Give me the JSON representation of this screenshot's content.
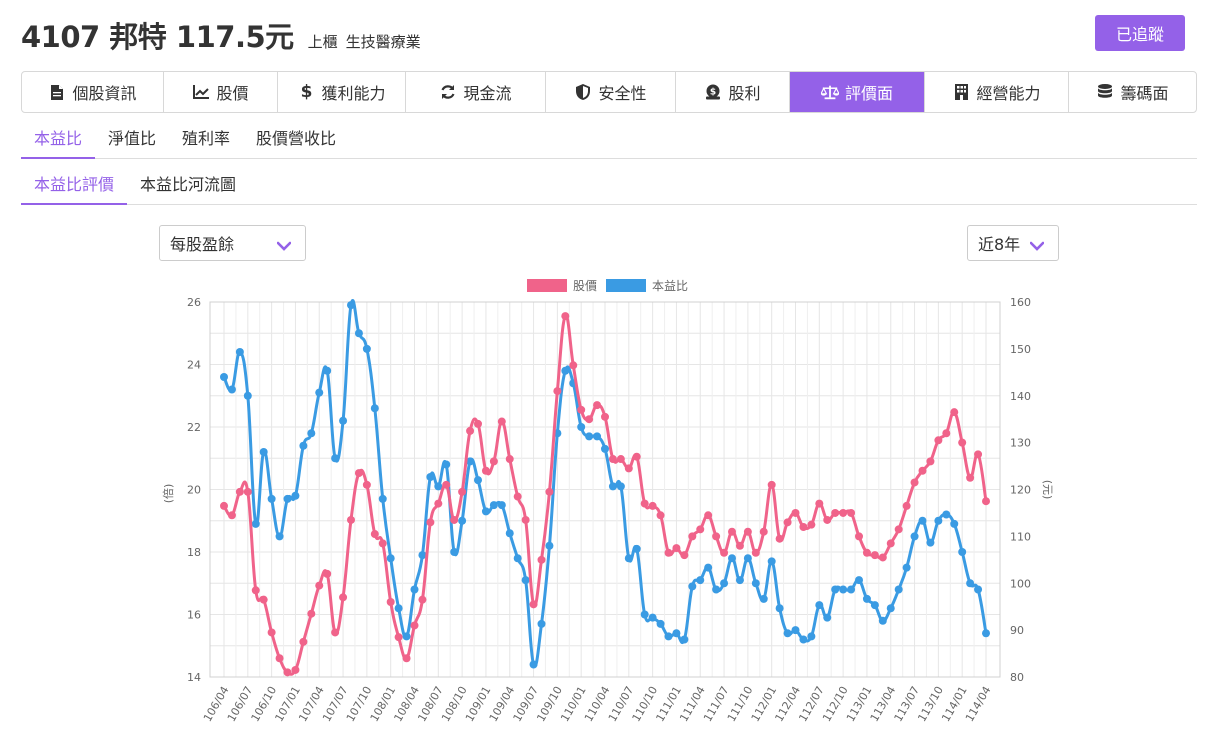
{
  "header": {
    "title": "4107 邦特 117.5元",
    "market": "上櫃",
    "industry": "生技醫療業",
    "follow_label": "已追蹤"
  },
  "main_tabs": [
    {
      "label": "個股資訊",
      "icon": "document-icon"
    },
    {
      "label": "股價",
      "icon": "chart-line-icon"
    },
    {
      "label": "獲利能力",
      "icon": "dollar-icon"
    },
    {
      "label": "現金流",
      "icon": "refresh-icon"
    },
    {
      "label": "安全性",
      "icon": "shield-icon"
    },
    {
      "label": "股利",
      "icon": "coin-icon"
    },
    {
      "label": "評價面",
      "icon": "balance-scale-icon"
    },
    {
      "label": "經營能力",
      "icon": "building-icon"
    },
    {
      "label": "籌碼面",
      "icon": "database-icon"
    }
  ],
  "active_main_tab": "評價面",
  "sub_tabs": [
    "本益比",
    "淨值比",
    "殖利率",
    "股價營收比"
  ],
  "sub_tabs2": [
    "本益比評價",
    "本益比河流圖"
  ],
  "eps_select": "每股盈餘",
  "period_select": "近8年",
  "colors": {
    "accent": "#9461e8",
    "price": "#f0638a",
    "pe": "#3a9be3"
  },
  "chart_data": {
    "type": "line",
    "legend": [
      "股價",
      "本益比"
    ],
    "left_axis_label": "(倍)",
    "right_axis_label": "(元)",
    "left_ylim": [
      14,
      26
    ],
    "left_ticks": [
      14,
      16,
      18,
      20,
      22,
      24,
      26
    ],
    "right_ylim": [
      80,
      160
    ],
    "right_ticks": [
      80,
      90,
      100,
      110,
      120,
      130,
      140,
      150,
      160
    ],
    "x_tick_labels": [
      "106/04",
      "106/07",
      "106/10",
      "107/01",
      "107/04",
      "107/07",
      "107/10",
      "108/01",
      "108/04",
      "108/07",
      "108/10",
      "109/01",
      "109/04",
      "109/07",
      "109/10",
      "110/01",
      "110/04",
      "110/07",
      "110/10",
      "111/01",
      "111/04",
      "111/07",
      "111/10",
      "112/01",
      "112/04",
      "112/07",
      "112/10",
      "113/01",
      "113/04",
      "113/07",
      "113/10",
      "114/01",
      "114/04"
    ],
    "series": [
      {
        "name": "股價",
        "axis": "right",
        "values": [
          116.5,
          114.5,
          119.5,
          119.5,
          98.5,
          96.5,
          89.5,
          84,
          81,
          81.5,
          87.5,
          93.5,
          99.5,
          102,
          89.5,
          97,
          113.5,
          123.5,
          121,
          110.5,
          108.5,
          96,
          88.5,
          84,
          91,
          96.5,
          113,
          117,
          121,
          113.5,
          119.5,
          132.5,
          134,
          124,
          126,
          134.5,
          126.5,
          118.5,
          113.5,
          95.5,
          105,
          119.5,
          141,
          157,
          146.5,
          137,
          135,
          138,
          135.5,
          126.5,
          126.5,
          124.5,
          127,
          117,
          116.5,
          114.5,
          106.5,
          107.5,
          106,
          110,
          111.5,
          114.5,
          110,
          106.5,
          111,
          108,
          111,
          106.5,
          111,
          121,
          109.5,
          113,
          115,
          112,
          112.5,
          117,
          113.5,
          115,
          115,
          115,
          110,
          106.5,
          106,
          105.5,
          108.5,
          111.5,
          116.5,
          121.5,
          124,
          126,
          130.5,
          132,
          136.5,
          130,
          122.5,
          127.5,
          117.5
        ]
      },
      {
        "name": "本益比",
        "axis": "left",
        "values": [
          23.6,
          23.2,
          24.4,
          23,
          18.9,
          21.2,
          19.7,
          18.5,
          19.7,
          19.8,
          21.4,
          21.8,
          23.1,
          23.8,
          21,
          22.2,
          25.9,
          25,
          24.5,
          22.6,
          19.7,
          17.8,
          16.2,
          15.3,
          16.8,
          17.9,
          20.4,
          20.1,
          20.8,
          18,
          19,
          20.9,
          20.3,
          19.3,
          19.5,
          19.5,
          18.6,
          17.8,
          17.1,
          14.4,
          15.7,
          18.2,
          21.8,
          23.8,
          23.4,
          22,
          21.7,
          21.7,
          21.3,
          20.1,
          20.1,
          17.8,
          18.1,
          16,
          15.9,
          15.7,
          15.3,
          15.4,
          15.2,
          16.9,
          17.1,
          17.5,
          16.8,
          17,
          17.8,
          17.1,
          17.8,
          17,
          16.5,
          17.7,
          16.2,
          15.4,
          15.5,
          15.2,
          15.3,
          16.3,
          15.9,
          16.8,
          16.8,
          16.8,
          17.1,
          16.5,
          16.3,
          15.8,
          16.2,
          16.8,
          17.5,
          18.5,
          19,
          18.3,
          19,
          19.2,
          18.9,
          18,
          17,
          16.8,
          15.4
        ]
      }
    ]
  }
}
